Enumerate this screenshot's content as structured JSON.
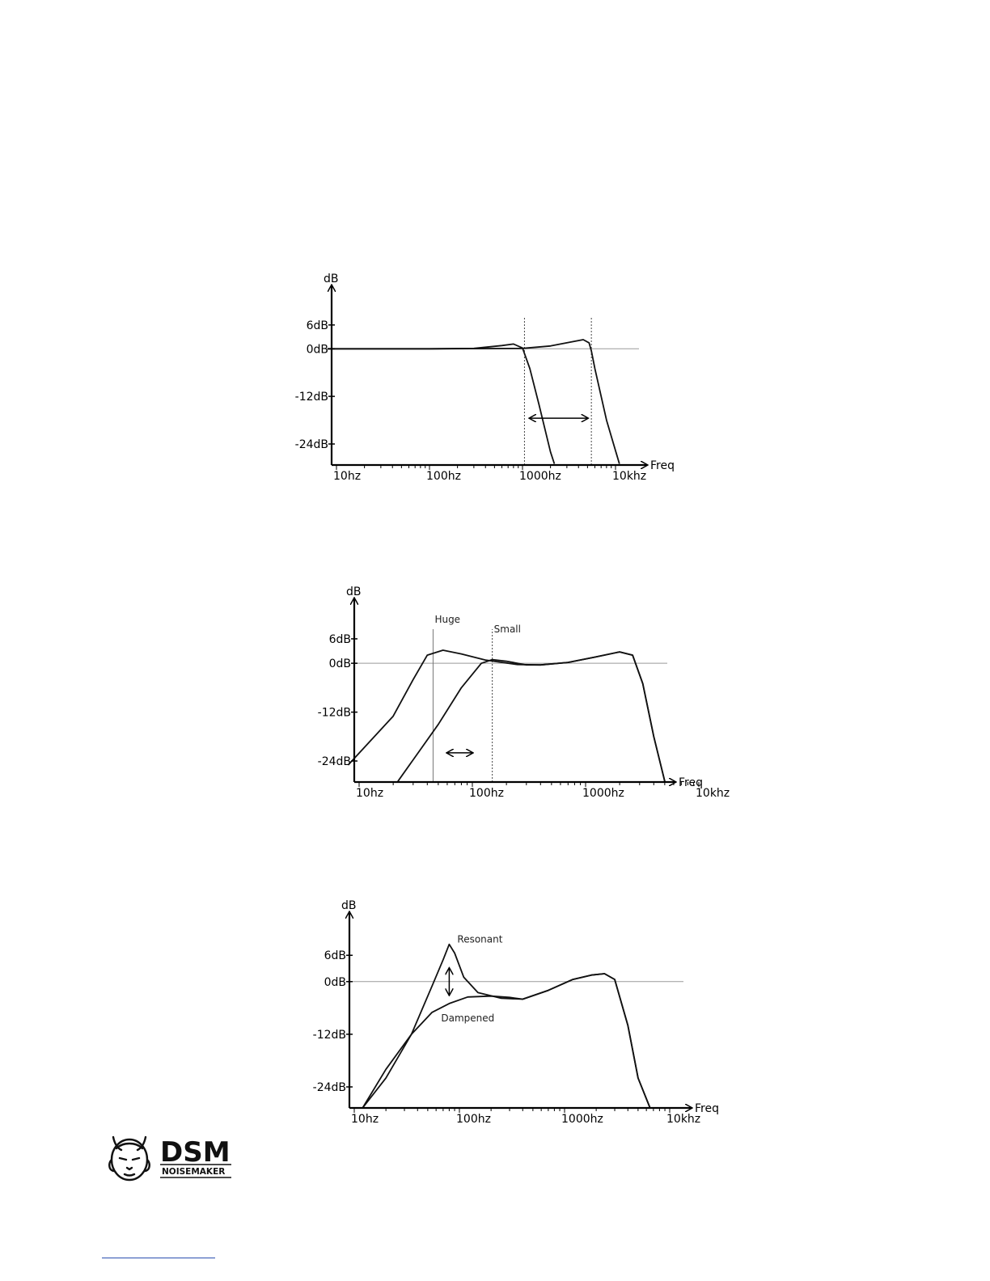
{
  "chart_data": [
    {
      "type": "line",
      "title": "",
      "xlabel": "Freq",
      "ylabel": "dB",
      "x_scale": "log",
      "xlim": [
        8,
        20000
      ],
      "ylim": [
        -28,
        10
      ],
      "x_ticks": [
        {
          "value": 10,
          "label": "10hz"
        },
        {
          "value": 100,
          "label": "100hz"
        },
        {
          "value": 1000,
          "label": "1000hz"
        },
        {
          "value": 10000,
          "label": "10khz"
        }
      ],
      "y_ticks": [
        {
          "value": 6,
          "label": "6dB"
        },
        {
          "value": 0,
          "label": "0dB"
        },
        {
          "value": -12,
          "label": "-12dB"
        },
        {
          "value": -24,
          "label": "-24dB"
        }
      ],
      "reference_line_db": 0,
      "cutoff_markers": [
        {
          "x": 1050,
          "style": "dotted"
        },
        {
          "x": 5500,
          "style": "dotted"
        }
      ],
      "arrows": [
        {
          "type": "horizontal",
          "x1": 1200,
          "x2": 5000,
          "y": -17.5
        }
      ],
      "series": [
        {
          "x": [
            8,
            100,
            300,
            600,
            800,
            1000,
            1200,
            1500,
            2000,
            2200
          ],
          "y": [
            0,
            0,
            0.1,
            0.8,
            1.2,
            0.2,
            -5,
            -14,
            -26,
            -29
          ]
        },
        {
          "x": [
            8,
            100,
            1000,
            2000,
            3500,
            4500,
            5200,
            5500,
            6000,
            8000,
            11000
          ],
          "y": [
            0,
            0,
            0.1,
            0.7,
            1.8,
            2.3,
            1.5,
            -0.5,
            -5,
            -18,
            -29
          ]
        }
      ]
    },
    {
      "type": "line",
      "title": "",
      "xlabel": "Freq",
      "ylabel": "dB",
      "x_scale": "log",
      "xlim": [
        8,
        20000
      ],
      "ylim": [
        -28,
        10
      ],
      "x_ticks": [
        {
          "value": 10,
          "label": "10hz"
        },
        {
          "value": 100,
          "label": "100hz"
        },
        {
          "value": 1000,
          "label": "1000hz"
        },
        {
          "value": 10000,
          "label": "10khz"
        }
      ],
      "y_ticks": [
        {
          "value": 6,
          "label": "6dB"
        },
        {
          "value": 0,
          "label": "0dB"
        },
        {
          "value": -12,
          "label": "-12dB"
        },
        {
          "value": -24,
          "label": "-24dB"
        }
      ],
      "reference_line_db": 0,
      "cutoff_markers": [
        {
          "x": 45,
          "style": "solid",
          "label": "Huge"
        },
        {
          "x": 150,
          "style": "dotted",
          "label": "Small"
        }
      ],
      "arrows": [
        {
          "type": "horizontal",
          "x1": 60,
          "x2": 100,
          "y": -22
        }
      ],
      "series": [
        {
          "name": "Huge",
          "x": [
            8,
            20,
            30,
            40,
            55,
            80,
            130,
            250,
            400,
            700,
            1200,
            2000,
            2600,
            3200,
            4000,
            5000
          ],
          "y": [
            -25,
            -13,
            -4,
            2,
            3.2,
            2.3,
            0.8,
            -0.3,
            -0.4,
            0.2,
            1.5,
            2.8,
            2,
            -5,
            -18,
            -29
          ]
        },
        {
          "name": "Small",
          "x": [
            22,
            50,
            80,
            120,
            150,
            200,
            300,
            400,
            700,
            1200,
            2000,
            2600,
            3200,
            4000,
            5000
          ],
          "y": [
            -29,
            -15,
            -6,
            0,
            0.9,
            0.5,
            -0.4,
            -0.4,
            0.2,
            1.5,
            2.8,
            2,
            -5,
            -18,
            -29
          ]
        }
      ]
    },
    {
      "type": "line",
      "title": "",
      "xlabel": "Freq",
      "ylabel": "dB",
      "x_scale": "log",
      "xlim": [
        8,
        20000
      ],
      "ylim": [
        -28,
        10
      ],
      "x_ticks": [
        {
          "value": 10,
          "label": "10hz"
        },
        {
          "value": 100,
          "label": "100hz"
        },
        {
          "value": 1000,
          "label": "1000hz"
        },
        {
          "value": 10000,
          "label": "10khz"
        }
      ],
      "y_ticks": [
        {
          "value": 6,
          "label": "6dB"
        },
        {
          "value": 0,
          "label": "0dB"
        },
        {
          "value": -12,
          "label": "-12dB"
        },
        {
          "value": -24,
          "label": "-24dB"
        }
      ],
      "reference_line_db": 0,
      "cutoff_markers": [],
      "arrows": [
        {
          "type": "vertical",
          "x": 80,
          "y1": 3,
          "y2": -3
        }
      ],
      "series": [
        {
          "name": "Resonant",
          "x": [
            12,
            20,
            35,
            55,
            70,
            80,
            90,
            110,
            150,
            250,
            400,
            700,
            1200,
            1800,
            2400,
            3000,
            4000,
            5000,
            6500
          ],
          "y": [
            -29,
            -22,
            -12,
            -1,
            5,
            8.5,
            6.5,
            1,
            -2.5,
            -3.8,
            -4,
            -2,
            0.5,
            1.5,
            1.8,
            0.5,
            -10,
            -22,
            -29
          ]
        },
        {
          "name": "Dampened",
          "x": [
            12,
            20,
            35,
            55,
            80,
            120,
            200,
            300,
            400,
            700,
            1200,
            1800,
            2400,
            3000,
            4000,
            5000,
            6500
          ],
          "y": [
            -29,
            -20,
            -12,
            -7,
            -5,
            -3.5,
            -3.3,
            -3.6,
            -4,
            -2,
            0.5,
            1.5,
            1.8,
            0.5,
            -10,
            -22,
            -29
          ]
        }
      ]
    }
  ],
  "logo": {
    "name": "DSM",
    "sub": "NOISEMAKER"
  }
}
